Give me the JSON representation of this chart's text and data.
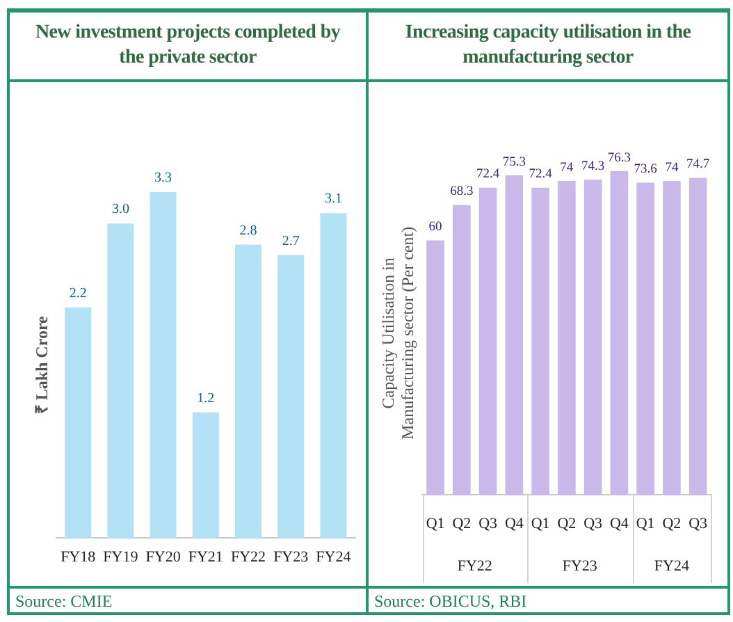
{
  "chart_data": [
    {
      "type": "bar",
      "title": "New investment projects completed by the private sector",
      "ylabel": "₹ Lakh Crore",
      "categories": [
        "FY18",
        "FY19",
        "FY20",
        "FY21",
        "FY22",
        "FY23",
        "FY24"
      ],
      "values": [
        2.2,
        3.0,
        3.3,
        1.2,
        2.8,
        2.7,
        3.1
      ],
      "value_labels": [
        "2.2",
        "3.0",
        "3.3",
        "1.2",
        "2.8",
        "2.7",
        "3.1"
      ],
      "color": "#b3e2f7",
      "tick_labels": "x",
      "annotations": [
        "Source: CMIE"
      ]
    },
    {
      "type": "bar",
      "title": "Increasing capacity utilisation in the manufacturing sector",
      "ylabel": "Capacity Utilisation in Manufacturing sector (Per cent)",
      "categories": [
        "Q1",
        "Q2",
        "Q3",
        "Q4",
        "Q1",
        "Q2",
        "Q3",
        "Q4",
        "Q1",
        "Q2",
        "Q3"
      ],
      "values": [
        60,
        68.3,
        72.4,
        75.3,
        72.4,
        74,
        74.3,
        76.3,
        73.6,
        74,
        74.7
      ],
      "data_labels": true,
      "color": "#c9b9ea",
      "tick_labels": "x",
      "annotations": [
        "FY22",
        "FY23",
        "FY24",
        "Source: OBICUS, RBI"
      ]
    }
  ]
}
